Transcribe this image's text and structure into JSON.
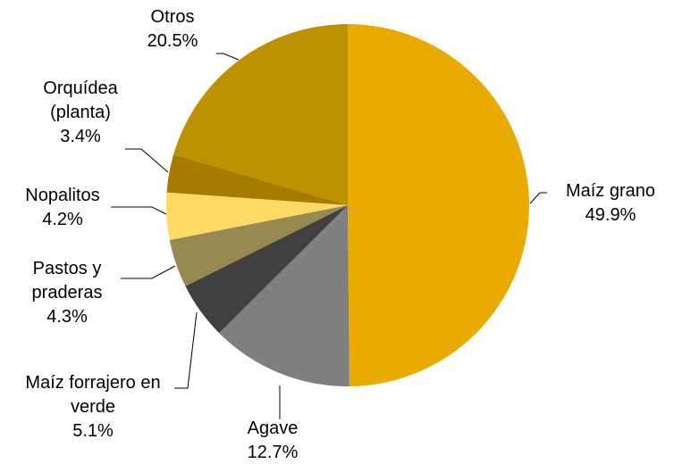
{
  "chart_data": {
    "type": "pie",
    "categories": [
      "Maíz grano",
      "Agave",
      "Maíz forrajero en verde",
      "Pastos y praderas",
      "Nopalitos",
      "Orquídea (planta)",
      "Otros"
    ],
    "values": [
      49.9,
      12.7,
      5.1,
      4.3,
      4.2,
      3.4,
      20.5
    ],
    "value_labels": [
      "49.9%",
      "12.7%",
      "5.1%",
      "4.3%",
      "4.2%",
      "3.4%",
      "20.5%"
    ],
    "colors": [
      "#e9ab00",
      "#7f7f7f",
      "#404040",
      "#968a52",
      "#ffd966",
      "#a67c00",
      "#bf9000"
    ]
  }
}
